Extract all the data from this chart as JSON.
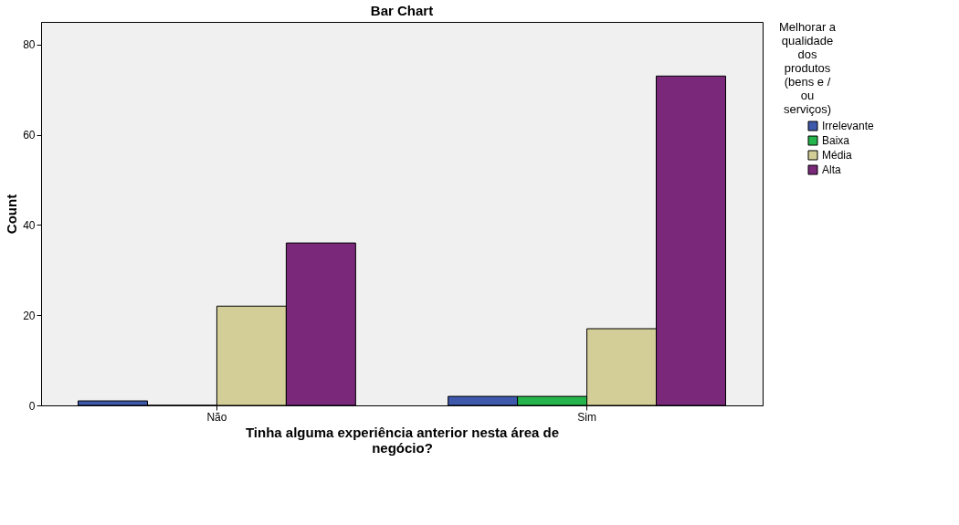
{
  "chart_data": {
    "type": "bar",
    "title": "Bar Chart",
    "xlabel": "Tinha alguma experiência anterior nesta área de negócio?",
    "ylabel": "Count",
    "legend_title": "Melhorar a qualidade dos produtos (bens e / ou serviços)",
    "categories": [
      "Não",
      "Sim"
    ],
    "series": [
      {
        "name": "Irrelevante",
        "color": "#3e58ac",
        "values": [
          1,
          2
        ]
      },
      {
        "name": "Baixa",
        "color": "#25b34b",
        "values": [
          0,
          2
        ]
      },
      {
        "name": "Média",
        "color": "#d3ce97",
        "values": [
          22,
          17
        ]
      },
      {
        "name": "Alta",
        "color": "#7a287a",
        "values": [
          36,
          73
        ]
      }
    ],
    "ylim": [
      0,
      85
    ],
    "yticks": [
      0,
      20,
      40,
      60,
      80
    ],
    "grid": false,
    "legend": "top right"
  }
}
